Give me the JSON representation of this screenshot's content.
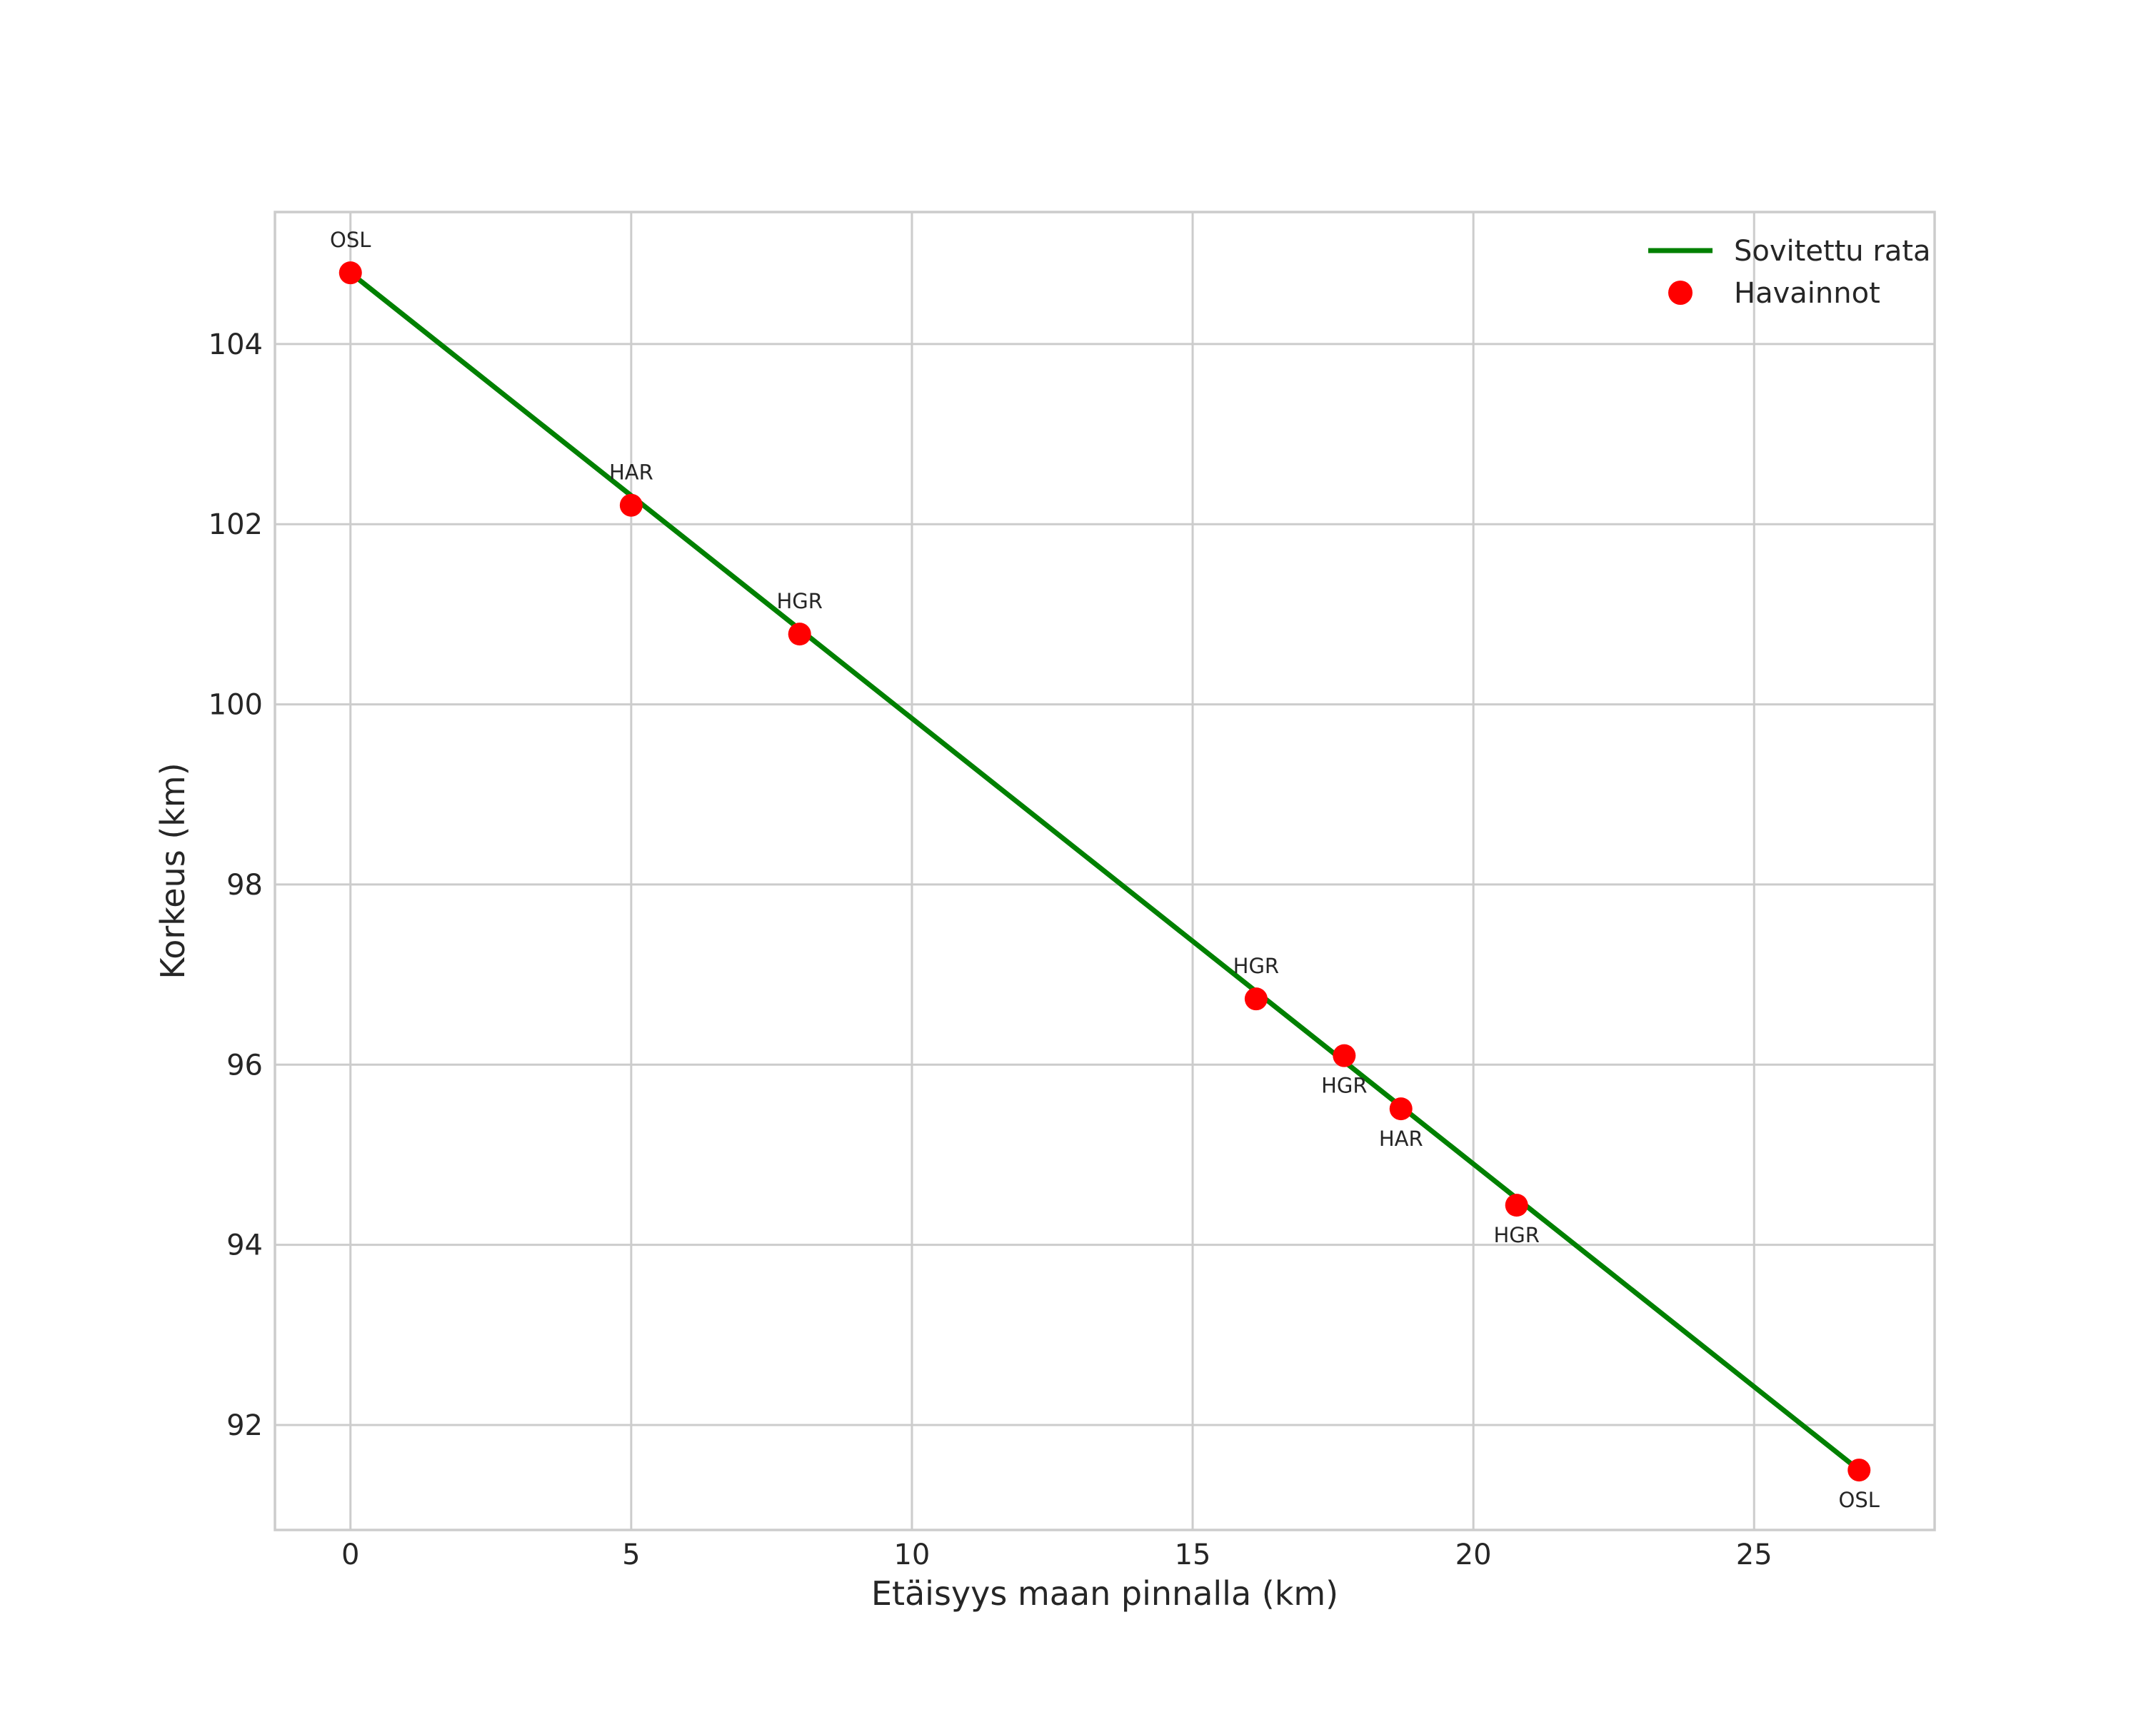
{
  "chart_data": {
    "type": "scatter",
    "title": "",
    "xlabel": "Etäisyys maan pinnalla (km)",
    "ylabel": "Korkeus (km)",
    "xlim": [
      -1.345,
      28.215
    ],
    "ylim": [
      90.835,
      105.465
    ],
    "xticks": [
      0,
      5,
      10,
      15,
      20,
      25
    ],
    "yticks": [
      92,
      94,
      96,
      98,
      100,
      102,
      104
    ],
    "grid": true,
    "legend_position": "upper right",
    "colors": {
      "line": "#008000",
      "marker": "#ff0000",
      "grid": "#cccccc",
      "spine": "#cccccc",
      "text": "#262626"
    },
    "series": [
      {
        "name": "Sovitettu rata",
        "type": "line",
        "color": "#008000",
        "x": [
          0.0,
          26.87
        ],
        "y": [
          104.79,
          91.5
        ]
      },
      {
        "name": "Havainnot",
        "type": "scatter",
        "color": "#ff0000",
        "points": [
          {
            "label": "OSL",
            "x": 0.0,
            "y": 104.79,
            "label_side": "above"
          },
          {
            "label": "HAR",
            "x": 5.0,
            "y": 102.21,
            "label_side": "above"
          },
          {
            "label": "HGR",
            "x": 8.0,
            "y": 100.78,
            "label_side": "above"
          },
          {
            "label": "HGR",
            "x": 16.13,
            "y": 96.73,
            "label_side": "above"
          },
          {
            "label": "HGR",
            "x": 17.7,
            "y": 96.1,
            "label_side": "below"
          },
          {
            "label": "HAR",
            "x": 18.71,
            "y": 95.51,
            "label_side": "below"
          },
          {
            "label": "HGR",
            "x": 20.77,
            "y": 94.44,
            "label_side": "below"
          },
          {
            "label": "OSL",
            "x": 26.87,
            "y": 91.5,
            "label_side": "below"
          }
        ]
      }
    ],
    "legend": [
      {
        "label": "Sovitettu rata",
        "marker": "line",
        "color": "#008000"
      },
      {
        "label": "Havainnot",
        "marker": "circle",
        "color": "#ff0000"
      }
    ]
  }
}
